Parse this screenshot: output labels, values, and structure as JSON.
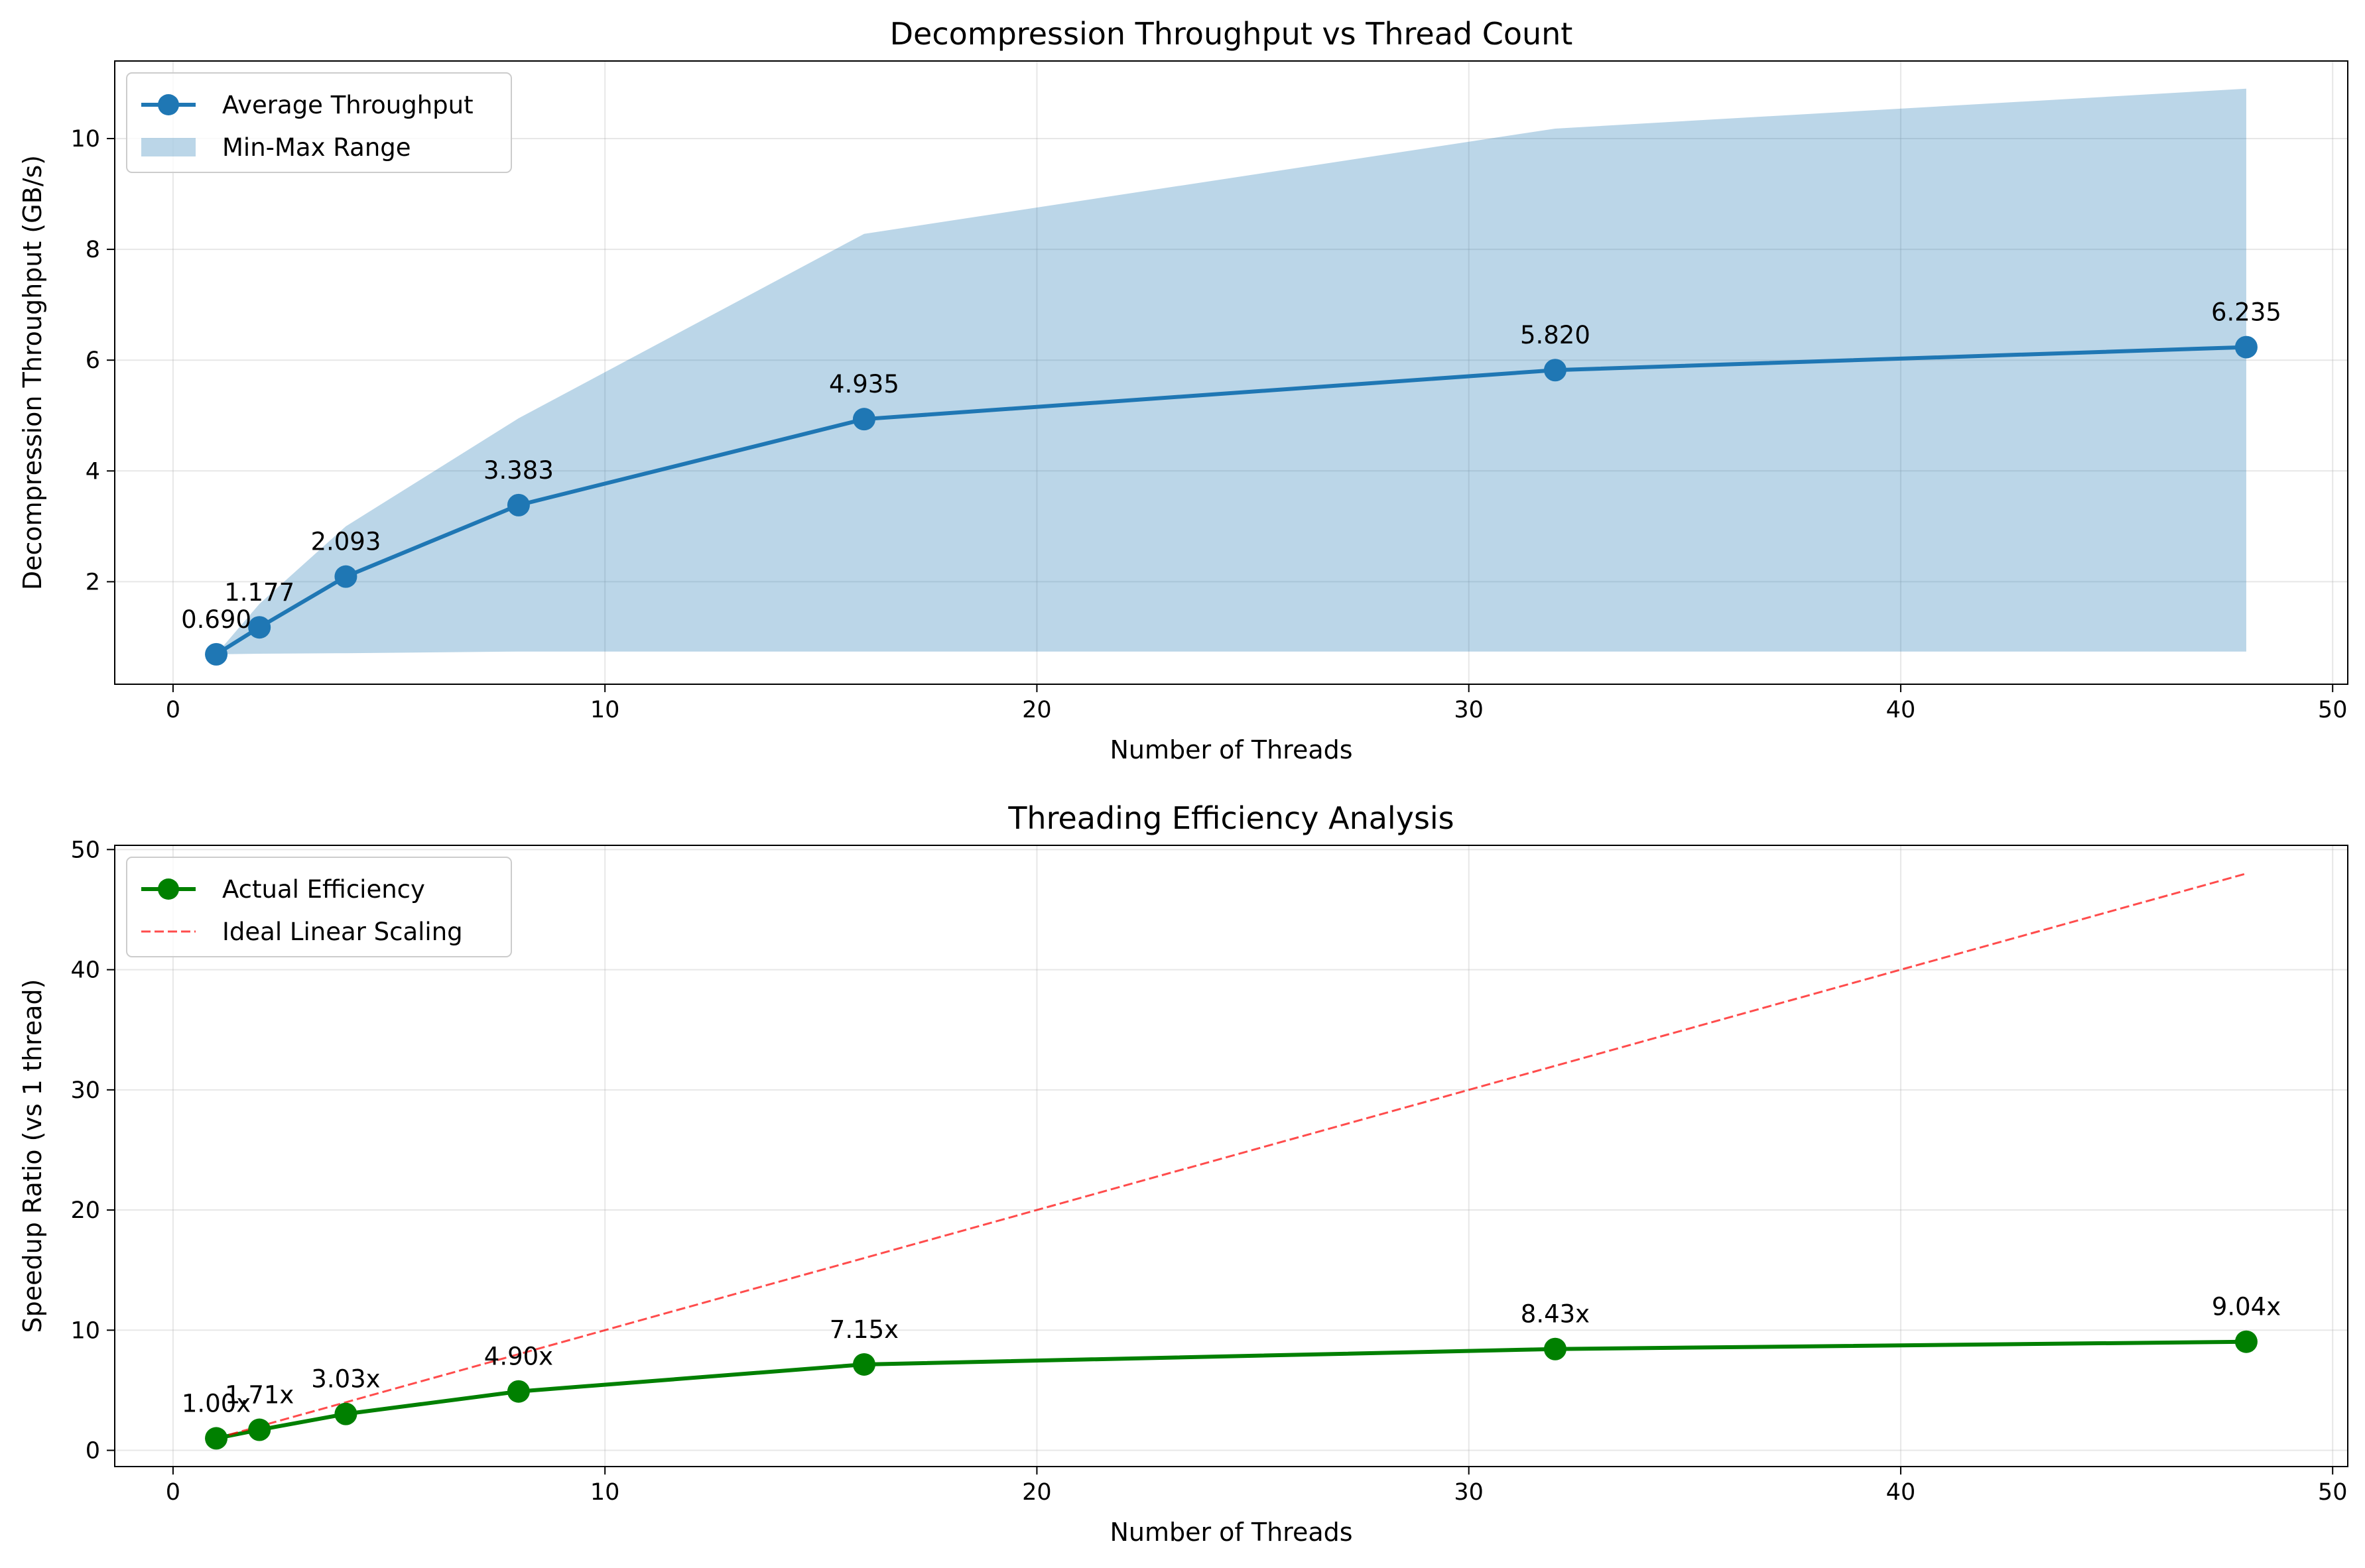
{
  "chart_data": [
    {
      "type": "line",
      "title": "Decompression Throughput vs Thread Count",
      "xlabel": "Number of Threads",
      "ylabel": "Decompression Throughput (GB/s)",
      "xlim": [
        -1.35,
        50.35
      ],
      "ylim": [
        0.15,
        11.4
      ],
      "xticks": [
        0,
        10,
        20,
        30,
        40,
        50
      ],
      "yticks": [
        2,
        4,
        6,
        8,
        10
      ],
      "grid": true,
      "legend_position": "upper-left",
      "x": [
        1,
        2,
        4,
        8,
        16,
        32,
        48
      ],
      "series": [
        {
          "name": "Average Throughput",
          "kind": "line-marker",
          "color": "#1f77b4",
          "values": [
            0.69,
            1.177,
            2.093,
            3.383,
            4.935,
            5.82,
            6.235
          ],
          "labels": [
            "0.690",
            "1.177",
            "2.093",
            "3.383",
            "4.935",
            "5.820",
            "6.235"
          ]
        },
        {
          "name": "Min-Max Range",
          "kind": "band",
          "color": "#1f77b4",
          "opacity": 0.3,
          "min": [
            0.69,
            0.7,
            0.71,
            0.74,
            0.74,
            0.74,
            0.74
          ],
          "max": [
            0.69,
            1.6,
            3.0,
            4.95,
            8.28,
            10.18,
            10.9
          ]
        }
      ]
    },
    {
      "type": "line",
      "title": "Threading Efficiency Analysis",
      "xlabel": "Number of Threads",
      "ylabel": "Speedup Ratio (vs 1 thread)",
      "xlim": [
        -1.35,
        50.35
      ],
      "ylim": [
        -1.35,
        50.35
      ],
      "xticks": [
        0,
        10,
        20,
        30,
        40,
        50
      ],
      "yticks": [
        0,
        10,
        20,
        30,
        40,
        50
      ],
      "grid": true,
      "legend_position": "upper-left",
      "x": [
        1,
        2,
        4,
        8,
        16,
        32,
        48
      ],
      "series": [
        {
          "name": "Actual Efficiency",
          "kind": "line-marker",
          "color": "#008000",
          "values": [
            1.0,
            1.71,
            3.03,
            4.9,
            7.15,
            8.43,
            9.04
          ],
          "labels": [
            "1.00x",
            "1.71x",
            "3.03x",
            "4.90x",
            "7.15x",
            "8.43x",
            "9.04x"
          ]
        },
        {
          "name": "Ideal Linear Scaling",
          "kind": "dashed",
          "color": "#ff0000",
          "opacity": 0.7,
          "values": [
            1,
            2,
            4,
            8,
            16,
            32,
            48
          ]
        }
      ]
    }
  ]
}
